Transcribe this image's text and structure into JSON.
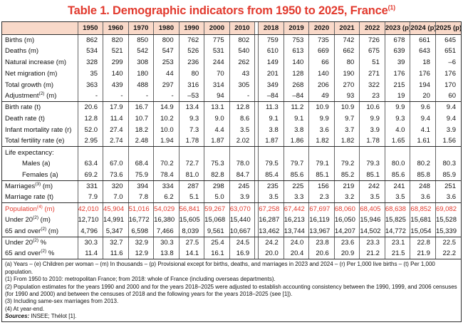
{
  "colors": {
    "accent": "#e23a2e",
    "header_bg": "#f9d9c9"
  },
  "title": {
    "text": "Table 1. Demographic indicators from 1950 to 2025, France",
    "superscript": "(1)"
  },
  "table": {
    "corner_label": "",
    "years_left": [
      "1950",
      "1960",
      "1970",
      "1980",
      "1990",
      "2000",
      "2010"
    ],
    "years_right": [
      "2018",
      "2019",
      "2020",
      "2021",
      "2022",
      "2023 (p)",
      "2024 (p)",
      "2025 (p)"
    ],
    "rows": [
      {
        "label_pre": "Births (m)",
        "sup": "",
        "label_post": "",
        "indent": false,
        "red": false,
        "group_end": false,
        "left": [
          "862",
          "820",
          "850",
          "800",
          "762",
          "775",
          "802"
        ],
        "right": [
          "759",
          "753",
          "735",
          "742",
          "726",
          "678",
          "661",
          "645"
        ]
      },
      {
        "label_pre": "Deaths (m)",
        "sup": "",
        "label_post": "",
        "indent": false,
        "red": false,
        "group_end": false,
        "left": [
          "534",
          "521",
          "542",
          "547",
          "526",
          "531",
          "540"
        ],
        "right": [
          "610",
          "613",
          "669",
          "662",
          "675",
          "639",
          "643",
          "651"
        ]
      },
      {
        "label_pre": "Natural increase (m)",
        "sup": "",
        "label_post": "",
        "indent": false,
        "red": false,
        "group_end": false,
        "left": [
          "328",
          "299",
          "308",
          "253",
          "236",
          "244",
          "262"
        ],
        "right": [
          "149",
          "140",
          "66",
          "80",
          "51",
          "39",
          "18",
          "–6"
        ]
      },
      {
        "label_pre": "Net migration (m)",
        "sup": "",
        "label_post": "",
        "indent": false,
        "red": false,
        "group_end": false,
        "left": [
          "35",
          "140",
          "180",
          "44",
          "80",
          "70",
          "43"
        ],
        "right": [
          "201",
          "128",
          "140",
          "190",
          "271",
          "176",
          "176",
          "176"
        ]
      },
      {
        "label_pre": "Total growth (m)",
        "sup": "",
        "label_post": "",
        "indent": false,
        "red": false,
        "group_end": false,
        "left": [
          "363",
          "439",
          "488",
          "297",
          "316",
          "314",
          "305"
        ],
        "right": [
          "349",
          "268",
          "206",
          "270",
          "322",
          "215",
          "194",
          "170"
        ]
      },
      {
        "label_pre": "Adjustment",
        "sup": "(2)",
        "label_post": " (m)",
        "indent": false,
        "red": false,
        "group_end": true,
        "left": [
          "-",
          "-",
          "-",
          "-",
          "–53",
          "94",
          "-"
        ],
        "right": [
          "–84",
          "–84",
          "49",
          "93",
          "23",
          "19",
          "20",
          "60"
        ]
      },
      {
        "label_pre": "Birth rate (t)",
        "sup": "",
        "label_post": "",
        "indent": false,
        "red": false,
        "group_end": false,
        "left": [
          "20.6",
          "17.9",
          "16.7",
          "14.9",
          "13.4",
          "13.1",
          "12.8"
        ],
        "right": [
          "11.3",
          "11.2",
          "10.9",
          "10.9",
          "10.6",
          "9.9",
          "9.6",
          "9.4"
        ]
      },
      {
        "label_pre": "Death rate (t)",
        "sup": "",
        "label_post": "",
        "indent": false,
        "red": false,
        "group_end": false,
        "left": [
          "12.8",
          "11.4",
          "10.7",
          "10.2",
          "9.3",
          "9.0",
          "8.6"
        ],
        "right": [
          "9.1",
          "9.1",
          "9.9",
          "9.7",
          "9.9",
          "9.3",
          "9.4",
          "9.4"
        ]
      },
      {
        "label_pre": "Infant mortality rate (r)",
        "sup": "",
        "label_post": "",
        "indent": false,
        "red": false,
        "group_end": false,
        "left": [
          "52.0",
          "27.4",
          "18.2",
          "10.0",
          "7.3",
          "4.4",
          "3.5"
        ],
        "right": [
          "3.8",
          "3.8",
          "3.6",
          "3.7",
          "3.9",
          "4.0",
          "4.1",
          "3.9"
        ]
      },
      {
        "label_pre": "Total fertility rate (e)",
        "sup": "",
        "label_post": "",
        "indent": false,
        "red": false,
        "group_end": true,
        "left": [
          "2.95",
          "2.74",
          "2.48",
          "1.94",
          "1.78",
          "1.87",
          "2.02"
        ],
        "right": [
          "1.87",
          "1.86",
          "1.82",
          "1.82",
          "1.78",
          "1.65",
          "1.61",
          "1.56"
        ]
      },
      {
        "label_pre": "Life expectancy:",
        "sup": "",
        "label_post": "",
        "indent": false,
        "red": false,
        "group_end": false,
        "left": [
          "",
          "",
          "",
          "",
          "",
          "",
          ""
        ],
        "right": [
          "",
          "",
          "",
          "",
          "",
          "",
          "",
          ""
        ]
      },
      {
        "label_pre": "Males (a)",
        "sup": "",
        "label_post": "",
        "indent": true,
        "red": false,
        "group_end": false,
        "left": [
          "63.4",
          "67.0",
          "68.4",
          "70.2",
          "72.7",
          "75.3",
          "78.0"
        ],
        "right": [
          "79.5",
          "79.7",
          "79.1",
          "79.2",
          "79.3",
          "80.0",
          "80.2",
          "80.3"
        ]
      },
      {
        "label_pre": "Females (a)",
        "sup": "",
        "label_post": "",
        "indent": true,
        "red": false,
        "group_end": true,
        "left": [
          "69.2",
          "73.6",
          "75.9",
          "78.4",
          "81.0",
          "82.8",
          "84.7"
        ],
        "right": [
          "85.4",
          "85.6",
          "85.1",
          "85.2",
          "85.1",
          "85.6",
          "85.8",
          "85.9"
        ]
      },
      {
        "label_pre": "Marriages",
        "sup": "(3)",
        "label_post": " (m)",
        "indent": false,
        "red": false,
        "group_end": false,
        "left": [
          "331",
          "320",
          "394",
          "334",
          "287",
          "298",
          "245"
        ],
        "right": [
          "235",
          "225",
          "156",
          "219",
          "242",
          "241",
          "248",
          "251"
        ]
      },
      {
        "label_pre": "Marriage rate (t)",
        "sup": "",
        "label_post": "",
        "indent": false,
        "red": false,
        "group_end": true,
        "left": [
          "7.9",
          "7.0",
          "7.8",
          "6.2",
          "5.1",
          "5.0",
          "3.9"
        ],
        "right": [
          "3.5",
          "3.3",
          "2.3",
          "3.2",
          "3.5",
          "3.5",
          "3.6",
          "3.6"
        ]
      },
      {
        "label_pre": "Population",
        "sup": "(4)",
        "label_post": " (m)",
        "indent": false,
        "red": true,
        "group_end": false,
        "left": [
          "42,010",
          "45,904",
          "51,016",
          "54,029",
          "56,841",
          "59,267",
          "63,070"
        ],
        "right": [
          "67,258",
          "67,442",
          "67,697",
          "68,060",
          "68,405",
          "68,638",
          "68,852",
          "69,082"
        ]
      },
      {
        "label_pre": "Under 20",
        "sup": "(2)",
        "label_post": " (m)",
        "indent": false,
        "red": false,
        "group_end": false,
        "left": [
          "12,710",
          "14,991",
          "16,772",
          "16,380",
          "15,605",
          "15,068",
          "15,440"
        ],
        "right": [
          "16,287",
          "16,213",
          "16,119",
          "16,050",
          "15,946",
          "15,825",
          "15,681",
          "15,528"
        ]
      },
      {
        "label_pre": "65 and over",
        "sup": "(2)",
        "label_post": " (m)",
        "indent": false,
        "red": false,
        "group_end": true,
        "left": [
          "4,796",
          "5,347",
          "6,598",
          "7,466",
          "8,039",
          "9,561",
          "10,667"
        ],
        "right": [
          "13,462",
          "13,744",
          "13,967",
          "14,207",
          "14,502",
          "14,772",
          "15,054",
          "15,339"
        ]
      },
      {
        "label_pre": "Under 20",
        "sup": "(2)",
        "label_post": " %",
        "indent": false,
        "red": false,
        "group_end": false,
        "left": [
          "30.3",
          "32.7",
          "32.9",
          "30.3",
          "27.5",
          "25.4",
          "24.5"
        ],
        "right": [
          "24.2",
          "24.0",
          "23.8",
          "23.6",
          "23.3",
          "23.1",
          "22.8",
          "22.5"
        ]
      },
      {
        "label_pre": "65 and over",
        "sup": "(2)",
        "label_post": " %",
        "indent": false,
        "red": false,
        "group_end": true,
        "left": [
          "11.4",
          "11.6",
          "12.9",
          "13.8",
          "14.1",
          "16.1",
          "16.9"
        ],
        "right": [
          "20.0",
          "20.4",
          "20.6",
          "20.9",
          "21.2",
          "21.5",
          "21.9",
          "22.2"
        ]
      }
    ]
  },
  "footnotes": [
    "(a) Years – (e) Children per woman – (m) In thousands – (p) Provisional except for births, deaths, and marriages in 2023 and 2024 – (r) Per 1,000 live births – (t) Per 1,000 population.",
    "(1) From 1950 to 2010: metropolitan France; from 2018: whole of France (including overseas departments).",
    "(2) Population estimates for the years 1990 and 2000 and for the years 2018–2025 were adjusted to establish accounting consistency between the 1990, 1999, and 2006 censuses (for 1990 and 2000) and between the censuses of 2018 and the following years for the years 2018–2025 (see [1]).",
    "(3) Including same-sex marriages from 2013.",
    "(4) At year-end."
  ],
  "sources": {
    "label": "Sources:",
    "text": " INSEE; Thélot [1]."
  }
}
